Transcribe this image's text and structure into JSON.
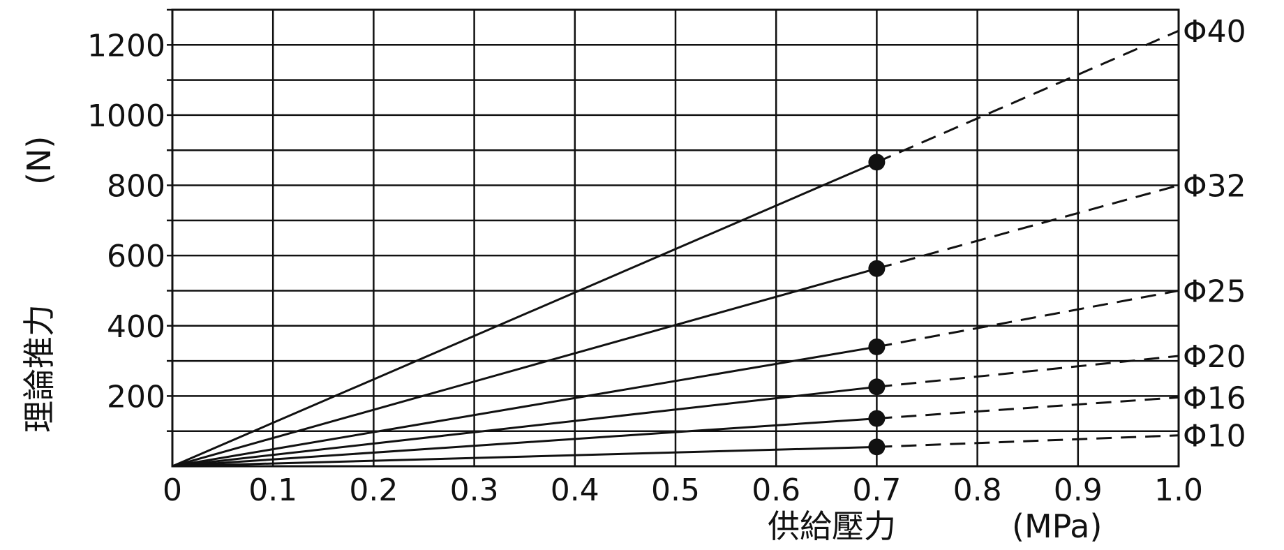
{
  "chart_data": {
    "type": "line",
    "title": "",
    "xlabel": "供給壓力",
    "xunit": "(MPa)",
    "ylabel": "理論推力",
    "yunit": "(N)",
    "xlim": [
      0,
      1.0
    ],
    "ylim": [
      0,
      1300
    ],
    "x_ticks": [
      "0",
      "0.1",
      "0.2",
      "0.3",
      "0.4",
      "0.5",
      "0.6",
      "0.7",
      "0.8",
      "0.9",
      "1.0"
    ],
    "y_ticks": [
      "200",
      "400",
      "600",
      "800",
      "1000",
      "1200"
    ],
    "grid": true,
    "series": [
      {
        "name": "Φ40",
        "solid": [
          [
            0,
            0
          ],
          [
            0.7,
            866
          ]
        ],
        "dashed": [
          [
            0.7,
            866
          ],
          [
            1.0,
            1240
          ]
        ],
        "marker": [
          0.7,
          866
        ]
      },
      {
        "name": "Φ32",
        "solid": [
          [
            0,
            0
          ],
          [
            0.7,
            563
          ]
        ],
        "dashed": [
          [
            0.7,
            563
          ],
          [
            1.0,
            800
          ]
        ],
        "marker": [
          0.7,
          563
        ]
      },
      {
        "name": "Φ25",
        "solid": [
          [
            0,
            0
          ],
          [
            0.7,
            340
          ]
        ],
        "dashed": [
          [
            0.7,
            340
          ],
          [
            1.0,
            500
          ]
        ],
        "marker": [
          0.7,
          340
        ]
      },
      {
        "name": "Φ20",
        "solid": [
          [
            0,
            0
          ],
          [
            0.7,
            226
          ]
        ],
        "dashed": [
          [
            0.7,
            226
          ],
          [
            1.0,
            314
          ]
        ],
        "marker": [
          0.7,
          226
        ]
      },
      {
        "name": "Φ16",
        "solid": [
          [
            0,
            0
          ],
          [
            0.7,
            136
          ]
        ],
        "dashed": [
          [
            0.7,
            136
          ],
          [
            1.0,
            196
          ]
        ],
        "marker": [
          0.7,
          136
        ]
      },
      {
        "name": "Φ10",
        "solid": [
          [
            0,
            0
          ],
          [
            0.7,
            55
          ]
        ],
        "dashed": [
          [
            0.7,
            55
          ],
          [
            1.0,
            88
          ]
        ],
        "marker": [
          0.7,
          55
        ]
      }
    ]
  }
}
